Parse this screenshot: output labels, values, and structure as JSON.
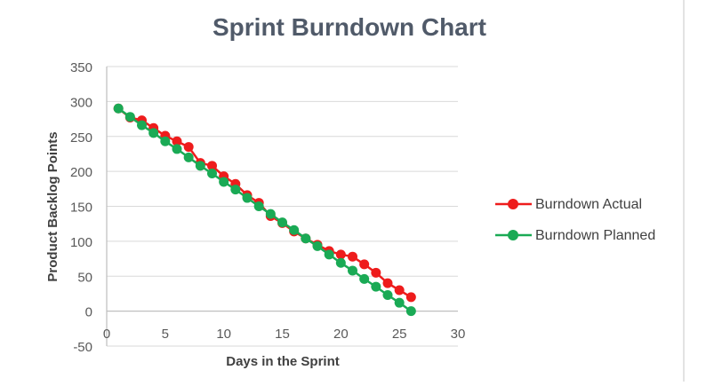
{
  "chart_data": {
    "type": "line",
    "title": "Sprint Burndown Chart",
    "xlabel": "Days in the Sprint",
    "ylabel": "Product Backlog Points",
    "xlim": [
      0,
      30
    ],
    "ylim": [
      -50,
      350
    ],
    "xticks": [
      0,
      5,
      10,
      15,
      20,
      25,
      30
    ],
    "yticks": [
      -50,
      0,
      50,
      100,
      150,
      200,
      250,
      300,
      350
    ],
    "grid": true,
    "legend_position": "right",
    "series": [
      {
        "name": "Burndown Actual",
        "color": "#ee1c1c",
        "x": [
          1,
          2,
          3,
          4,
          5,
          6,
          7,
          8,
          9,
          10,
          11,
          12,
          13,
          14,
          15,
          16,
          17,
          18,
          19,
          20,
          21,
          22,
          23,
          24,
          25,
          26
        ],
        "y": [
          290,
          277,
          273,
          262,
          251,
          243,
          235,
          212,
          208,
          193,
          182,
          166,
          155,
          136,
          126,
          114,
          104,
          95,
          86,
          81,
          78,
          67,
          55,
          40,
          30,
          20
        ]
      },
      {
        "name": "Burndown Planned",
        "color": "#1aaa55",
        "x": [
          1,
          2,
          3,
          4,
          5,
          6,
          7,
          8,
          9,
          10,
          11,
          12,
          13,
          14,
          15,
          16,
          17,
          18,
          19,
          20,
          21,
          22,
          23,
          24,
          25,
          26
        ],
        "y": [
          290,
          278,
          266,
          255,
          243,
          232,
          220,
          208,
          197,
          185,
          174,
          162,
          150,
          139,
          127,
          116,
          104,
          93,
          81,
          69,
          58,
          46,
          35,
          23,
          12,
          0
        ]
      }
    ]
  }
}
